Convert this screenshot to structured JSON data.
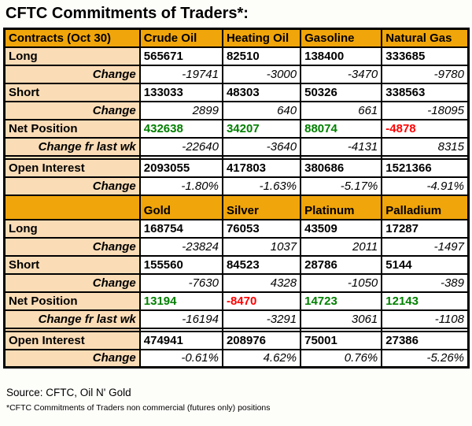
{
  "title": "CFTC Commitments of Traders*:",
  "colors": {
    "header_bg": "#F0A50A",
    "label_bg": "#FADCB6",
    "positive": "#008000",
    "negative": "#FF0000",
    "border": "#000000",
    "page_bg": "#FDFDFA"
  },
  "chart_data": {
    "type": "table",
    "title": "CFTC Commitments of Traders (Oct 30)",
    "sections": [
      {
        "header": [
          "Contracts (Oct 30)",
          "Crude Oil",
          "Heating Oil",
          "Gasoline",
          "Natural Gas"
        ],
        "rows": [
          {
            "label": "Long",
            "style": "main",
            "values": [
              "565671",
              "82510",
              "138400",
              "333685"
            ]
          },
          {
            "label": "Change",
            "style": "change",
            "values": [
              "-19741",
              "-3000",
              "-3470",
              "-9780"
            ]
          },
          {
            "label": "Short",
            "style": "main",
            "values": [
              "133033",
              "48303",
              "50326",
              "338563"
            ]
          },
          {
            "label": "Change",
            "style": "change",
            "values": [
              "2899",
              "640",
              "661",
              "-18095"
            ]
          },
          {
            "label": "Net Position",
            "style": "net",
            "values": [
              "432638",
              "34207",
              "88074",
              "-4878"
            ]
          },
          {
            "label": "Change fr last wk",
            "style": "change",
            "values": [
              "-22640",
              "-3640",
              "-4131",
              "8315"
            ]
          },
          {
            "label": "",
            "style": "spacer",
            "values": [
              "",
              "",
              "",
              ""
            ]
          },
          {
            "label": "Open Interest",
            "style": "main",
            "values": [
              "2093055",
              "417803",
              "380686",
              "1521366"
            ]
          },
          {
            "label": "Change",
            "style": "change",
            "values": [
              "-1.80%",
              "-1.63%",
              "-5.17%",
              "-4.91%"
            ]
          }
        ]
      },
      {
        "header": [
          "",
          "Gold",
          "Silver",
          "Platinum",
          "Palladium"
        ],
        "rows": [
          {
            "label": "Long",
            "style": "main",
            "values": [
              "168754",
              "76053",
              "43509",
              "17287"
            ]
          },
          {
            "label": "Change",
            "style": "change",
            "values": [
              "-23824",
              "1037",
              "2011",
              "-1497"
            ]
          },
          {
            "label": "Short",
            "style": "main",
            "values": [
              "155560",
              "84523",
              "28786",
              "5144"
            ]
          },
          {
            "label": "Change",
            "style": "change",
            "values": [
              "-7630",
              "4328",
              "-1050",
              "-389"
            ]
          },
          {
            "label": "Net Position",
            "style": "net",
            "values": [
              "13194",
              "-8470",
              "14723",
              "12143"
            ]
          },
          {
            "label": "Change fr last wk",
            "style": "change",
            "values": [
              "-16194",
              "-3291",
              "3061",
              "-1108"
            ]
          },
          {
            "label": "",
            "style": "spacer",
            "values": [
              "",
              "",
              "",
              ""
            ]
          },
          {
            "label": "Open Interest",
            "style": "main",
            "values": [
              "474941",
              "208976",
              "75001",
              "27386"
            ]
          },
          {
            "label": "Change",
            "style": "change",
            "values": [
              "-0.61%",
              "4.62%",
              "0.76%",
              "-5.26%"
            ]
          }
        ]
      }
    ]
  },
  "footer": {
    "source": "Source: CFTC, Oil N' Gold",
    "footnote": "*CFTC Commitments of Traders non commercial (futures only) positions"
  }
}
